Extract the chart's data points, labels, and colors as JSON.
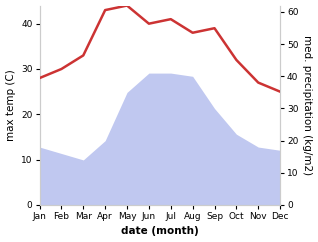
{
  "months": [
    "Jan",
    "Feb",
    "Mar",
    "Apr",
    "May",
    "Jun",
    "Jul",
    "Aug",
    "Sep",
    "Oct",
    "Nov",
    "Dec"
  ],
  "month_positions": [
    0,
    1,
    2,
    3,
    4,
    5,
    6,
    7,
    8,
    9,
    10,
    11
  ],
  "temperature": [
    28,
    30,
    33,
    43,
    44,
    40,
    41,
    38,
    39,
    32,
    27,
    25
  ],
  "precipitation": [
    18,
    16,
    14,
    20,
    35,
    41,
    41,
    40,
    30,
    22,
    18,
    17
  ],
  "temp_color": "#cc3333",
  "precip_fill_color": "#c0c8f0",
  "precip_border_color": "#b0b8e8",
  "temp_ylim": [
    0,
    44
  ],
  "precip_ylim": [
    0,
    62
  ],
  "temp_yticks": [
    0,
    10,
    20,
    30,
    40
  ],
  "precip_yticks": [
    0,
    10,
    20,
    30,
    40,
    50,
    60
  ],
  "ylabel_left": "max temp (C)",
  "ylabel_right": "med. precipitation (kg/m2)",
  "xlabel": "date (month)",
  "background_color": "#ffffff",
  "tick_fontsize": 6.5,
  "label_fontsize": 7.5,
  "xlabel_fontsize": 7.5,
  "linewidth": 1.8
}
